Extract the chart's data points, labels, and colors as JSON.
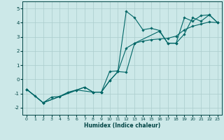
{
  "xlabel": "Humidex (Indice chaleur)",
  "background_color": "#cce8e8",
  "grid_color": "#aacccc",
  "line_color": "#006666",
  "xlim": [
    -0.5,
    23.5
  ],
  "ylim": [
    -2.5,
    5.5
  ],
  "yticks": [
    -2,
    -1,
    0,
    1,
    2,
    3,
    4,
    5
  ],
  "xticks": [
    0,
    1,
    2,
    3,
    4,
    5,
    6,
    7,
    8,
    9,
    10,
    11,
    12,
    13,
    14,
    15,
    16,
    17,
    18,
    19,
    20,
    21,
    22,
    23
  ],
  "series": [
    {
      "x": [
        0,
        1,
        2,
        3,
        4,
        5,
        6,
        7,
        8,
        9,
        10,
        11,
        12,
        13,
        14,
        15,
        16,
        17,
        18,
        19,
        20,
        21,
        22,
        23
      ],
      "y": [
        -0.7,
        -1.15,
        -1.65,
        -1.25,
        -1.2,
        -0.9,
        -0.75,
        -0.55,
        -0.9,
        -0.9,
        0.55,
        0.6,
        4.8,
        4.35,
        3.5,
        3.6,
        3.45,
        2.55,
        2.55,
        4.35,
        4.1,
        4.5,
        4.55,
        4.0
      ]
    },
    {
      "x": [
        0,
        2,
        4,
        6,
        8,
        9,
        10,
        11,
        12,
        13,
        14,
        15,
        16,
        17,
        18,
        19,
        20,
        21,
        22,
        23
      ],
      "y": [
        -0.7,
        -1.65,
        -1.2,
        -0.75,
        -0.9,
        -0.9,
        -0.1,
        0.55,
        2.2,
        2.55,
        2.7,
        2.8,
        2.85,
        2.9,
        3.05,
        3.5,
        3.75,
        3.9,
        4.05,
        4.0
      ]
    },
    {
      "x": [
        0,
        2,
        7,
        8,
        9,
        10,
        11,
        12,
        13,
        16,
        17,
        18,
        19,
        20,
        21,
        22,
        23
      ],
      "y": [
        -0.7,
        -1.65,
        -0.55,
        -0.9,
        -0.9,
        -0.1,
        0.55,
        0.5,
        2.55,
        3.4,
        2.55,
        2.55,
        3.2,
        4.35,
        4.1,
        4.55,
        4.0
      ]
    }
  ]
}
